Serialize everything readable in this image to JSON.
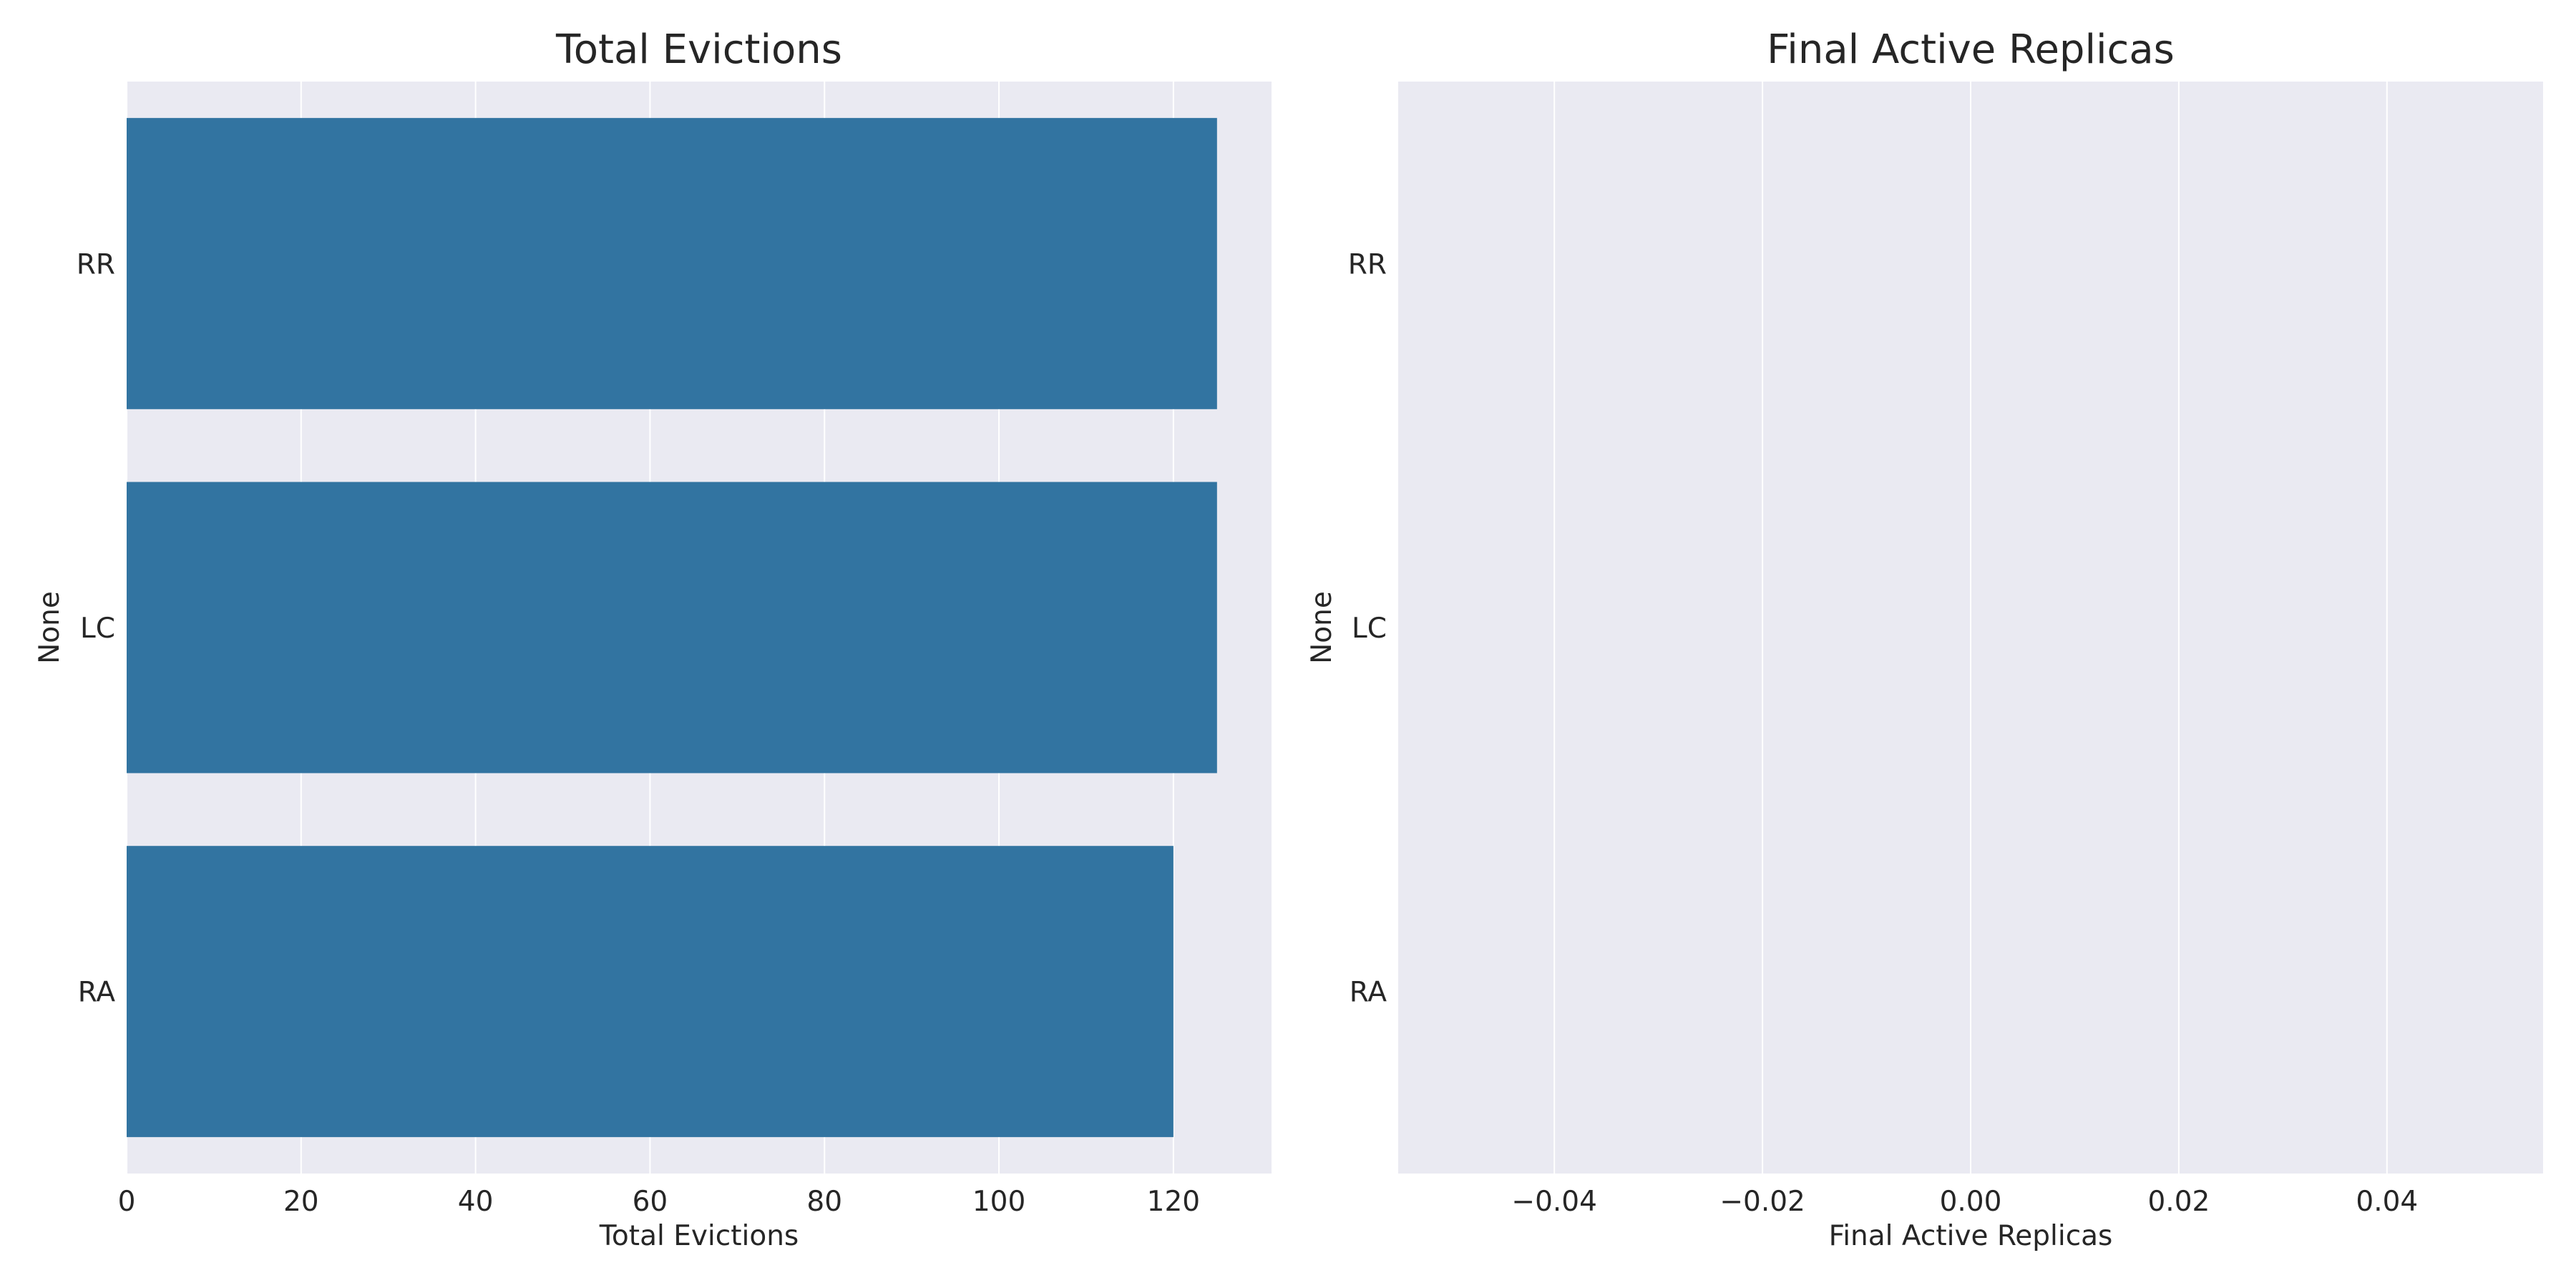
{
  "chart_data": [
    {
      "type": "bar",
      "orientation": "horizontal",
      "title": "Total Evictions",
      "xlabel": "Total Evictions",
      "ylabel": "None",
      "categories": [
        "RR",
        "LC",
        "RA"
      ],
      "values": [
        125,
        125,
        120
      ],
      "xlim": [
        0,
        131.25
      ],
      "xticks": [
        0,
        20,
        40,
        60,
        80,
        100,
        120
      ],
      "xtick_labels": [
        "0",
        "20",
        "40",
        "60",
        "80",
        "100",
        "120"
      ],
      "bar_color": "#3274a1",
      "grid": true
    },
    {
      "type": "bar",
      "orientation": "horizontal",
      "title": "Final Active Replicas",
      "xlabel": "Final Active Replicas",
      "ylabel": "None",
      "categories": [
        "RR",
        "LC",
        "RA"
      ],
      "values": [
        0,
        0,
        0
      ],
      "xlim": [
        -0.055,
        0.055
      ],
      "xticks": [
        -0.04,
        -0.02,
        0.0,
        0.02,
        0.04
      ],
      "xtick_labels": [
        "−0.04",
        "−0.02",
        "0.00",
        "0.02",
        "0.04"
      ],
      "bar_color": "#3274a1",
      "grid": true
    }
  ],
  "style": {
    "plot_background": "#eaeaf2",
    "grid_color": "#ffffff",
    "text_color": "#262626"
  }
}
